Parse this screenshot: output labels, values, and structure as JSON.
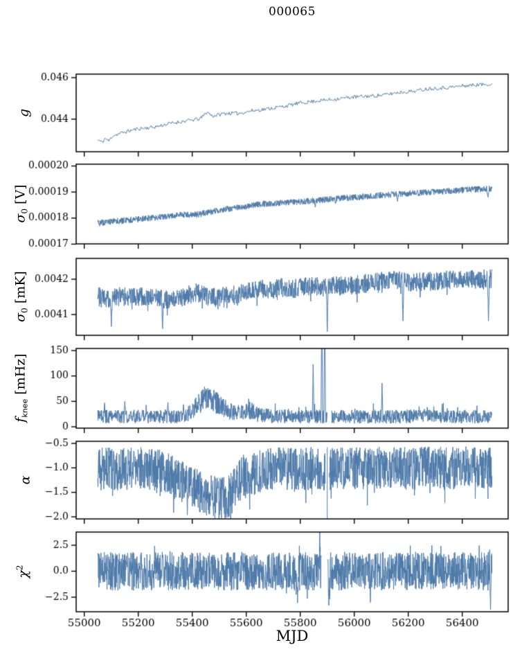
{
  "figure": {
    "title": "000065",
    "xlabel": "MJD",
    "line_color": "#4d7aa9",
    "spine_color": "#000000",
    "text_color": "#000000",
    "background": "#ffffff"
  },
  "chart_data": {
    "type": "line",
    "title": "000065",
    "xlabel": "MJD",
    "legend": "none",
    "grid": false,
    "xlim": [
      54970,
      56570
    ],
    "xticks": [
      55000,
      55200,
      55400,
      55600,
      55800,
      56000,
      56200,
      56400
    ],
    "xtick_labels": [
      "55000",
      "55200",
      "55400",
      "55600",
      "55800",
      "56000",
      "56200",
      "56400"
    ],
    "x_data_range": [
      55050,
      56510
    ],
    "panels": [
      {
        "id": "g",
        "ylabel": {
          "base": "g",
          "sub": "",
          "sup": "",
          "unit": "",
          "text": "g"
        },
        "ylim": [
          0.04243,
          0.04617
        ],
        "yticks": [
          0.044,
          0.046
        ],
        "ytick_labels": [
          "0.044",
          "0.046"
        ],
        "series": {
          "points": 430,
          "noise": 9e-05,
          "trend": [
            [
              55050,
              0.043
            ],
            [
              55066,
              0.04288
            ],
            [
              55078,
              0.04308
            ],
            [
              55090,
              0.04294
            ],
            [
              55105,
              0.0432
            ],
            [
              55150,
              0.04338
            ],
            [
              55200,
              0.04354
            ],
            [
              55260,
              0.04362
            ],
            [
              55320,
              0.0438
            ],
            [
              55380,
              0.04392
            ],
            [
              55430,
              0.04402
            ],
            [
              55455,
              0.04435
            ],
            [
              55475,
              0.04415
            ],
            [
              55520,
              0.04428
            ],
            [
              55570,
              0.04428
            ],
            [
              55620,
              0.0444
            ],
            [
              55680,
              0.0445
            ],
            [
              55740,
              0.04462
            ],
            [
              55800,
              0.04478
            ],
            [
              55860,
              0.04488
            ],
            [
              55920,
              0.04495
            ],
            [
              55980,
              0.04505
            ],
            [
              56040,
              0.0451
            ],
            [
              56100,
              0.04515
            ],
            [
              56160,
              0.04528
            ],
            [
              56220,
              0.04535
            ],
            [
              56280,
              0.04548
            ],
            [
              56340,
              0.04552
            ],
            [
              56400,
              0.0456
            ],
            [
              56450,
              0.04565
            ],
            [
              56510,
              0.0457
            ]
          ]
        }
      },
      {
        "id": "sigma0_V",
        "ylabel": {
          "base": "σ",
          "sub": "0",
          "sup": "",
          "unit": " [V]",
          "text": "σ0 [V]"
        },
        "ylim": [
          0.0001701,
          0.0002007
        ],
        "yticks": [
          0.00017,
          0.00018,
          0.00019,
          0.0002
        ],
        "ytick_labels": [
          "0.00017",
          "0.00018",
          "0.00019",
          "0.00020"
        ],
        "series": {
          "points": 1600,
          "noise": 1.2e-06,
          "trend": [
            [
              55050,
              0.0001781
            ],
            [
              55150,
              0.0001791
            ],
            [
              55250,
              0.0001801
            ],
            [
              55350,
              0.0001812
            ],
            [
              55430,
              0.0001815
            ],
            [
              55480,
              0.0001827
            ],
            [
              55540,
              0.0001837
            ],
            [
              55600,
              0.0001845
            ],
            [
              55640,
              0.0001853
            ],
            [
              55700,
              0.0001857
            ],
            [
              55780,
              0.0001861
            ],
            [
              55860,
              0.0001868
            ],
            [
              55940,
              0.0001875
            ],
            [
              56020,
              0.0001881
            ],
            [
              56100,
              0.0001888
            ],
            [
              56180,
              0.0001893
            ],
            [
              56260,
              0.0001898
            ],
            [
              56340,
              0.0001903
            ],
            [
              56420,
              0.0001909
            ],
            [
              56510,
              0.0001913
            ]
          ],
          "spikes": [
            [
              55855,
              0.0001842,
              3
            ],
            [
              55930,
              0.0001856,
              3
            ],
            [
              56160,
              0.0001864,
              3
            ],
            [
              56495,
              0.000188,
              4
            ]
          ]
        }
      },
      {
        "id": "sigma0_mK",
        "ylabel": {
          "base": "σ",
          "sub": "0",
          "sup": "",
          "unit": " [mK]",
          "text": "σ0 [mK]"
        },
        "ylim": [
          0.0040412,
          0.0042588
        ],
        "yticks": [
          0.0041,
          0.0042
        ],
        "ytick_labels": [
          "0.0041",
          "0.0042"
        ],
        "series": {
          "points": 1600,
          "noise": 2.7e-05,
          "extra": {
            "prob": 0.04,
            "amp": 3e-05,
            "sign": -1
          },
          "trend": [
            [
              55050,
              0.004152
            ],
            [
              55085,
              0.004143
            ],
            [
              55120,
              0.00415
            ],
            [
              55170,
              0.004152
            ],
            [
              55220,
              0.004149
            ],
            [
              55270,
              0.004147
            ],
            [
              55310,
              0.004141
            ],
            [
              55350,
              0.004147
            ],
            [
              55395,
              0.004158
            ],
            [
              55420,
              0.004162
            ],
            [
              55450,
              0.004152
            ],
            [
              55490,
              0.004148
            ],
            [
              55530,
              0.004153
            ],
            [
              55570,
              0.004158
            ],
            [
              55610,
              0.004166
            ],
            [
              55650,
              0.004174
            ],
            [
              55690,
              0.00417
            ],
            [
              55730,
              0.004177
            ],
            [
              55770,
              0.004173
            ],
            [
              55810,
              0.004177
            ],
            [
              55850,
              0.004181
            ],
            [
              55890,
              0.004177
            ],
            [
              55930,
              0.004181
            ],
            [
              55970,
              0.004183
            ],
            [
              56010,
              0.004185
            ],
            [
              56050,
              0.004189
            ],
            [
              56090,
              0.004193
            ],
            [
              56130,
              0.004197
            ],
            [
              56170,
              0.004196
            ],
            [
              56210,
              0.004191
            ],
            [
              56250,
              0.004193
            ],
            [
              56290,
              0.004195
            ],
            [
              56330,
              0.004197
            ],
            [
              56370,
              0.004198
            ],
            [
              56420,
              0.004199
            ],
            [
              56510,
              0.004201
            ]
          ],
          "spikes": [
            [
              55100,
              0.004066,
              3
            ],
            [
              55290,
              0.00406,
              3
            ],
            [
              55900,
              0.004052,
              3
            ],
            [
              56180,
              0.004082,
              3
            ],
            [
              56497,
              0.004082,
              3
            ]
          ]
        }
      },
      {
        "id": "fknee",
        "ylabel": {
          "base": "f",
          "sub": "knee",
          "sup": "",
          "unit": " [mHz]",
          "text": "fknee [mHz]"
        },
        "ylim": [
          -2.7,
          154.1
        ],
        "yticks": [
          0,
          50,
          100,
          150
        ],
        "ytick_labels": [
          "0",
          "50",
          "100",
          "150"
        ],
        "series": {
          "points": 1500,
          "noise": 7,
          "noise_scale": 0.32,
          "extra": {
            "prob": 0.04,
            "amp": 16,
            "sign": 1
          },
          "trend": [
            [
              55050,
              20
            ],
            [
              55370,
              20
            ],
            [
              55400,
              30
            ],
            [
              55420,
              44
            ],
            [
              55445,
              58
            ],
            [
              55465,
              56
            ],
            [
              55490,
              47
            ],
            [
              55520,
              37
            ],
            [
              55550,
              28
            ],
            [
              55580,
              27
            ],
            [
              55600,
              34
            ],
            [
              55620,
              31
            ],
            [
              55645,
              23
            ],
            [
              55700,
              21
            ],
            [
              55900,
              20
            ],
            [
              56510,
              20
            ]
          ],
          "spikes": [
            [
              55075,
              47,
              2
            ],
            [
              55150,
              50,
              2
            ],
            [
              55310,
              48,
              2
            ],
            [
              55368,
              44,
              2
            ],
            [
              55848,
              123,
              2
            ],
            [
              55880,
              260,
              2
            ],
            [
              55891,
              300,
              2
            ],
            [
              56103,
              86,
              2
            ],
            [
              56240,
              40,
              2
            ],
            [
              56326,
              45,
              2
            ]
          ],
          "gaps": [
            [
              55900,
              55916
            ]
          ]
        }
      },
      {
        "id": "alpha",
        "ylabel": {
          "base": "α",
          "sub": "",
          "sup": "",
          "unit": "",
          "text": "α"
        },
        "ylim": [
          -2.0425,
          -0.4576
        ],
        "yticks": [
          -2.0,
          -1.5,
          -1.0,
          -0.5
        ],
        "ytick_labels": [
          "−2.0",
          "−1.5",
          "−1.0",
          "−0.5"
        ],
        "series": {
          "points": 1700,
          "noise": 0.44,
          "extra": {
            "prob": 0.05,
            "amp": 0.35,
            "sign": -1
          },
          "trend": [
            [
              55050,
              -1.02
            ],
            [
              55270,
              -1.02
            ],
            [
              55300,
              -1.1
            ],
            [
              55335,
              -1.22
            ],
            [
              55370,
              -1.3
            ],
            [
              55405,
              -1.4
            ],
            [
              55435,
              -1.5
            ],
            [
              55465,
              -1.58
            ],
            [
              55495,
              -1.62
            ],
            [
              55525,
              -1.6
            ],
            [
              55548,
              -1.5
            ],
            [
              55568,
              -1.32
            ],
            [
              55588,
              -1.16
            ],
            [
              55605,
              -1.24
            ],
            [
              55625,
              -1.14
            ],
            [
              55655,
              -1.06
            ],
            [
              55700,
              -1.02
            ],
            [
              56510,
              -1.0
            ]
          ],
          "gaps": [
            [
              55893,
              55907
            ]
          ],
          "vlines": [
            [
              55900,
              -0.58,
              -2.4
            ]
          ]
        }
      },
      {
        "id": "chi2",
        "ylabel": {
          "base": "χ",
          "sub": "",
          "sup": "2",
          "unit": "",
          "text": "χ2"
        },
        "ylim": [
          -3.9,
          3.767
        ],
        "yticks": [
          -2.5,
          0.0,
          2.5
        ],
        "ytick_labels": [
          "−2.5",
          "0.0",
          "2.5"
        ],
        "series": {
          "points": 1700,
          "noise": 1.85,
          "extra": {
            "prob": 0.06,
            "amp": 0.95,
            "sign": 0
          },
          "trend": [
            [
              55050,
              0
            ],
            [
              56510,
              0
            ]
          ],
          "spikes": [
            [
              55790,
              -3.05,
              2
            ],
            [
              55872,
              3.8,
              2
            ],
            [
              55906,
              -3.3,
              2
            ],
            [
              56060,
              -3.0,
              2
            ],
            [
              56505,
              -3.7,
              2
            ]
          ],
          "gaps": [
            [
              55878,
              55902
            ]
          ]
        }
      }
    ]
  }
}
